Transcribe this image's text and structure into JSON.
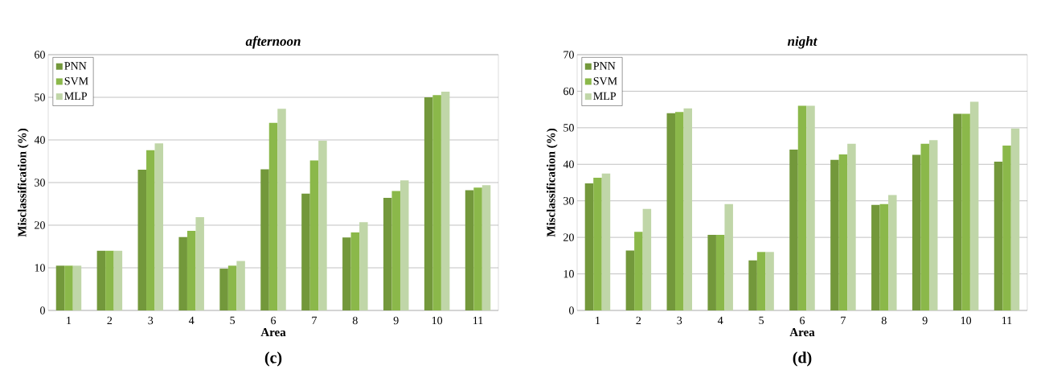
{
  "chart_data": [
    {
      "type": "bar",
      "title": "afternoon",
      "xlabel": "Area",
      "ylabel": "Misclassification (%)",
      "categories": [
        "1",
        "2",
        "3",
        "4",
        "5",
        "6",
        "7",
        "8",
        "9",
        "10",
        "11"
      ],
      "series": [
        {
          "name": "PNN",
          "color": "#73983b",
          "values": [
            10.5,
            14,
            33,
            17.2,
            9.8,
            33.1,
            27.4,
            17.1,
            26.4,
            50,
            28.2
          ]
        },
        {
          "name": "SVM",
          "color": "#8bb84a",
          "values": [
            10.5,
            14,
            37.6,
            18.7,
            10.5,
            44,
            35.2,
            18.3,
            28,
            50.5,
            28.8
          ]
        },
        {
          "name": "MLP",
          "color": "#c0d6a8",
          "values": [
            10.5,
            14,
            39.2,
            21.9,
            11.6,
            47.3,
            39.8,
            20.7,
            30.5,
            51.3,
            29.4
          ]
        }
      ],
      "ylim": [
        0,
        60
      ],
      "yticks": [
        0,
        10,
        20,
        30,
        40,
        50,
        60
      ],
      "grid": "y",
      "legend": "top left",
      "annotations": [
        "(c)"
      ]
    },
    {
      "type": "bar",
      "title": "night",
      "xlabel": "Area",
      "ylabel": "Misclassification (%)",
      "categories": [
        "1",
        "2",
        "3",
        "4",
        "5",
        "6",
        "7",
        "8",
        "9",
        "10",
        "11"
      ],
      "series": [
        {
          "name": "PNN",
          "color": "#73983b",
          "values": [
            34.8,
            16.4,
            54,
            20.7,
            13.7,
            44,
            41.2,
            28.9,
            42.6,
            53.8,
            40.7
          ]
        },
        {
          "name": "SVM",
          "color": "#8bb84a",
          "values": [
            36.3,
            21.5,
            54.3,
            20.7,
            16,
            56,
            42.7,
            29.1,
            45.6,
            53.8,
            45.1
          ]
        },
        {
          "name": "MLP",
          "color": "#c0d6a8",
          "values": [
            37.5,
            27.8,
            55.3,
            29.1,
            16,
            56,
            45.6,
            31.6,
            46.6,
            57.1,
            49.8
          ]
        }
      ],
      "ylim": [
        0,
        70
      ],
      "yticks": [
        0,
        10,
        20,
        30,
        40,
        50,
        60,
        70
      ],
      "grid": "y",
      "legend": "top left",
      "annotations": [
        "(d)"
      ]
    }
  ]
}
